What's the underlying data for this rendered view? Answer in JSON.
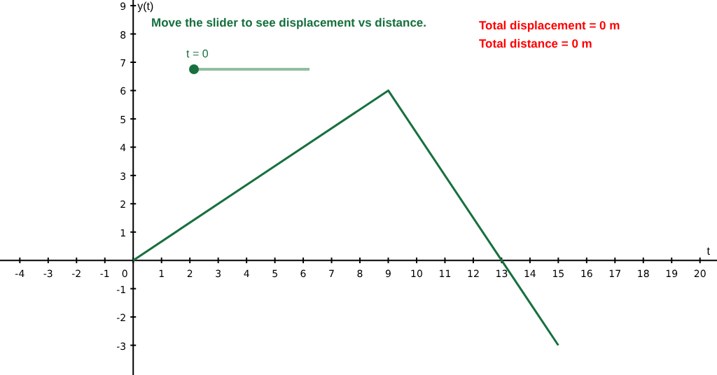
{
  "chart_data": {
    "type": "line",
    "title": "Move the slider to see displacement vs distance.",
    "xlabel": "t",
    "ylabel": "y(t)",
    "annotations": [
      "Total displacement = 0 m",
      "Total distance = 0 m",
      "t = 0"
    ],
    "x": [
      0,
      9,
      15
    ],
    "series": [
      {
        "color": "#17703f",
        "values": [
          0,
          6,
          -3
        ]
      }
    ],
    "xlim": [
      -4.7,
      20.6
    ],
    "ylim": [
      -4.05,
      9.2
    ],
    "xticks": [
      -4,
      -3,
      -2,
      -1,
      0,
      1,
      2,
      3,
      4,
      5,
      6,
      7,
      8,
      9,
      10,
      11,
      12,
      13,
      14,
      15,
      16,
      17,
      18,
      19,
      20
    ],
    "yticks": [
      -3,
      -2,
      -1,
      1,
      2,
      3,
      4,
      5,
      6,
      7,
      8,
      9
    ],
    "grid": false,
    "legend": false,
    "marker": "none",
    "line_style": "solid"
  }
}
